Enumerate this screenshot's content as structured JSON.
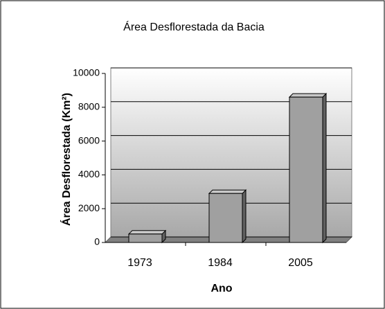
{
  "chart_data": {
    "type": "bar",
    "title": "Área Desflorestada da Bacia",
    "x_label": "Ano",
    "y_label": "Área Desflorestada (Km²)",
    "categories": [
      "1973",
      "1984",
      "2005"
    ],
    "values": [
      500,
      2900,
      8600
    ],
    "color": "#a0a0a0",
    "ylim": [
      0,
      10000
    ],
    "yticks": [
      0,
      2000,
      4000,
      6000,
      8000,
      10000
    ],
    "grid": true
  }
}
